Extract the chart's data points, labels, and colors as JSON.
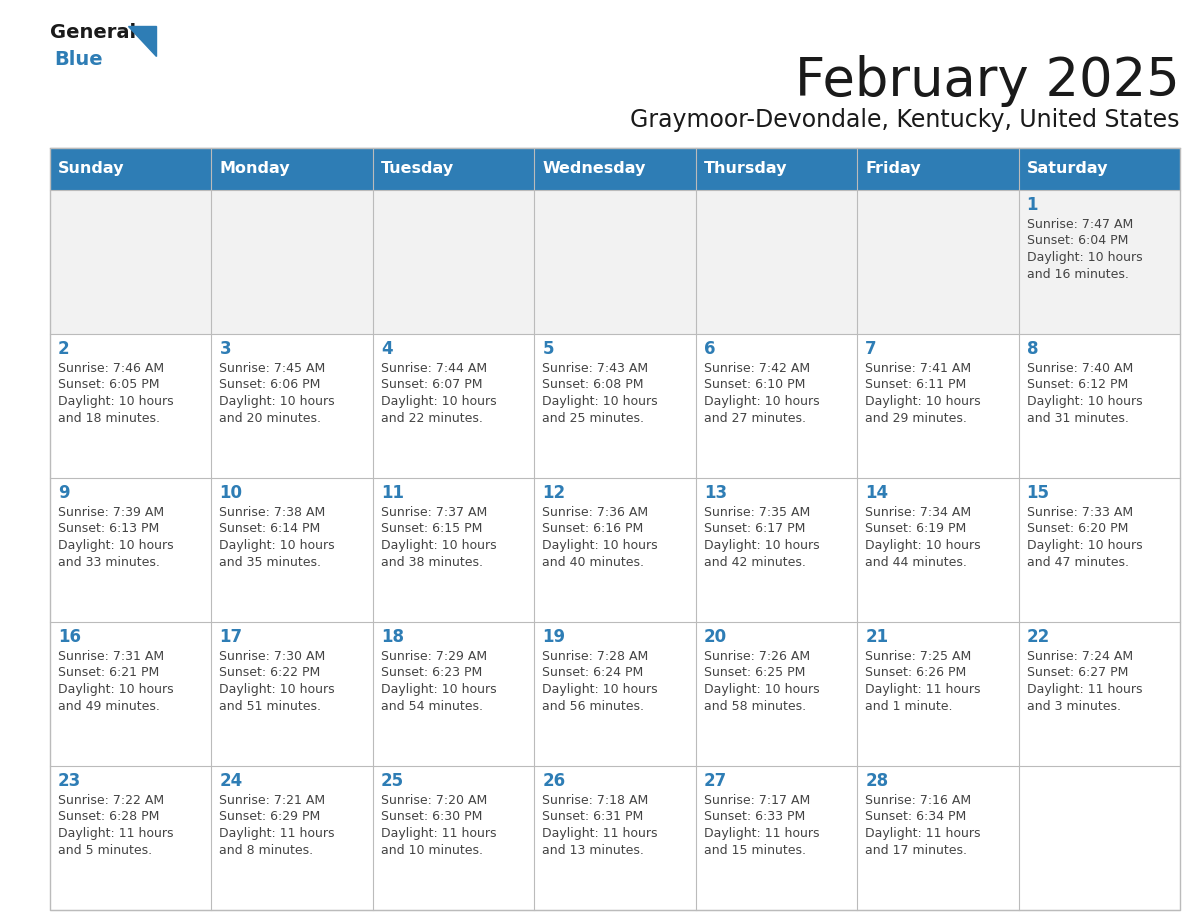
{
  "title": "February 2025",
  "subtitle": "Graymoor-Devondale, Kentucky, United States",
  "days_of_week": [
    "Sunday",
    "Monday",
    "Tuesday",
    "Wednesday",
    "Thursday",
    "Friday",
    "Saturday"
  ],
  "header_bg": "#2E7DB5",
  "header_text": "#FFFFFF",
  "cell_bg": "#FFFFFF",
  "first_row_bg": "#F2F2F2",
  "cell_border": "#CCCCCC",
  "day_number_color": "#2E7DB5",
  "info_text_color": "#444444",
  "title_color": "#1a1a1a",
  "subtitle_color": "#1a1a1a",
  "logo_general_color": "#1a1a1a",
  "logo_blue_color": "#2E7DB5",
  "calendar_data": [
    [
      null,
      null,
      null,
      null,
      null,
      null,
      1
    ],
    [
      2,
      3,
      4,
      5,
      6,
      7,
      8
    ],
    [
      9,
      10,
      11,
      12,
      13,
      14,
      15
    ],
    [
      16,
      17,
      18,
      19,
      20,
      21,
      22
    ],
    [
      23,
      24,
      25,
      26,
      27,
      28,
      null
    ]
  ],
  "cell_data": {
    "1": {
      "sunrise": "7:47 AM",
      "sunset": "6:04 PM",
      "daylight": "10 hours",
      "daylight2": "and 16 minutes."
    },
    "2": {
      "sunrise": "7:46 AM",
      "sunset": "6:05 PM",
      "daylight": "10 hours",
      "daylight2": "and 18 minutes."
    },
    "3": {
      "sunrise": "7:45 AM",
      "sunset": "6:06 PM",
      "daylight": "10 hours",
      "daylight2": "and 20 minutes."
    },
    "4": {
      "sunrise": "7:44 AM",
      "sunset": "6:07 PM",
      "daylight": "10 hours",
      "daylight2": "and 22 minutes."
    },
    "5": {
      "sunrise": "7:43 AM",
      "sunset": "6:08 PM",
      "daylight": "10 hours",
      "daylight2": "and 25 minutes."
    },
    "6": {
      "sunrise": "7:42 AM",
      "sunset": "6:10 PM",
      "daylight": "10 hours",
      "daylight2": "and 27 minutes."
    },
    "7": {
      "sunrise": "7:41 AM",
      "sunset": "6:11 PM",
      "daylight": "10 hours",
      "daylight2": "and 29 minutes."
    },
    "8": {
      "sunrise": "7:40 AM",
      "sunset": "6:12 PM",
      "daylight": "10 hours",
      "daylight2": "and 31 minutes."
    },
    "9": {
      "sunrise": "7:39 AM",
      "sunset": "6:13 PM",
      "daylight": "10 hours",
      "daylight2": "and 33 minutes."
    },
    "10": {
      "sunrise": "7:38 AM",
      "sunset": "6:14 PM",
      "daylight": "10 hours",
      "daylight2": "and 35 minutes."
    },
    "11": {
      "sunrise": "7:37 AM",
      "sunset": "6:15 PM",
      "daylight": "10 hours",
      "daylight2": "and 38 minutes."
    },
    "12": {
      "sunrise": "7:36 AM",
      "sunset": "6:16 PM",
      "daylight": "10 hours",
      "daylight2": "and 40 minutes."
    },
    "13": {
      "sunrise": "7:35 AM",
      "sunset": "6:17 PM",
      "daylight": "10 hours",
      "daylight2": "and 42 minutes."
    },
    "14": {
      "sunrise": "7:34 AM",
      "sunset": "6:19 PM",
      "daylight": "10 hours",
      "daylight2": "and 44 minutes."
    },
    "15": {
      "sunrise": "7:33 AM",
      "sunset": "6:20 PM",
      "daylight": "10 hours",
      "daylight2": "and 47 minutes."
    },
    "16": {
      "sunrise": "7:31 AM",
      "sunset": "6:21 PM",
      "daylight": "10 hours",
      "daylight2": "and 49 minutes."
    },
    "17": {
      "sunrise": "7:30 AM",
      "sunset": "6:22 PM",
      "daylight": "10 hours",
      "daylight2": "and 51 minutes."
    },
    "18": {
      "sunrise": "7:29 AM",
      "sunset": "6:23 PM",
      "daylight": "10 hours",
      "daylight2": "and 54 minutes."
    },
    "19": {
      "sunrise": "7:28 AM",
      "sunset": "6:24 PM",
      "daylight": "10 hours",
      "daylight2": "and 56 minutes."
    },
    "20": {
      "sunrise": "7:26 AM",
      "sunset": "6:25 PM",
      "daylight": "10 hours",
      "daylight2": "and 58 minutes."
    },
    "21": {
      "sunrise": "7:25 AM",
      "sunset": "6:26 PM",
      "daylight": "11 hours",
      "daylight2": "and 1 minute."
    },
    "22": {
      "sunrise": "7:24 AM",
      "sunset": "6:27 PM",
      "daylight": "11 hours",
      "daylight2": "and 3 minutes."
    },
    "23": {
      "sunrise": "7:22 AM",
      "sunset": "6:28 PM",
      "daylight": "11 hours",
      "daylight2": "and 5 minutes."
    },
    "24": {
      "sunrise": "7:21 AM",
      "sunset": "6:29 PM",
      "daylight": "11 hours",
      "daylight2": "and 8 minutes."
    },
    "25": {
      "sunrise": "7:20 AM",
      "sunset": "6:30 PM",
      "daylight": "11 hours",
      "daylight2": "and 10 minutes."
    },
    "26": {
      "sunrise": "7:18 AM",
      "sunset": "6:31 PM",
      "daylight": "11 hours",
      "daylight2": "and 13 minutes."
    },
    "27": {
      "sunrise": "7:17 AM",
      "sunset": "6:33 PM",
      "daylight": "11 hours",
      "daylight2": "and 15 minutes."
    },
    "28": {
      "sunrise": "7:16 AM",
      "sunset": "6:34 PM",
      "daylight": "11 hours",
      "daylight2": "and 17 minutes."
    }
  }
}
